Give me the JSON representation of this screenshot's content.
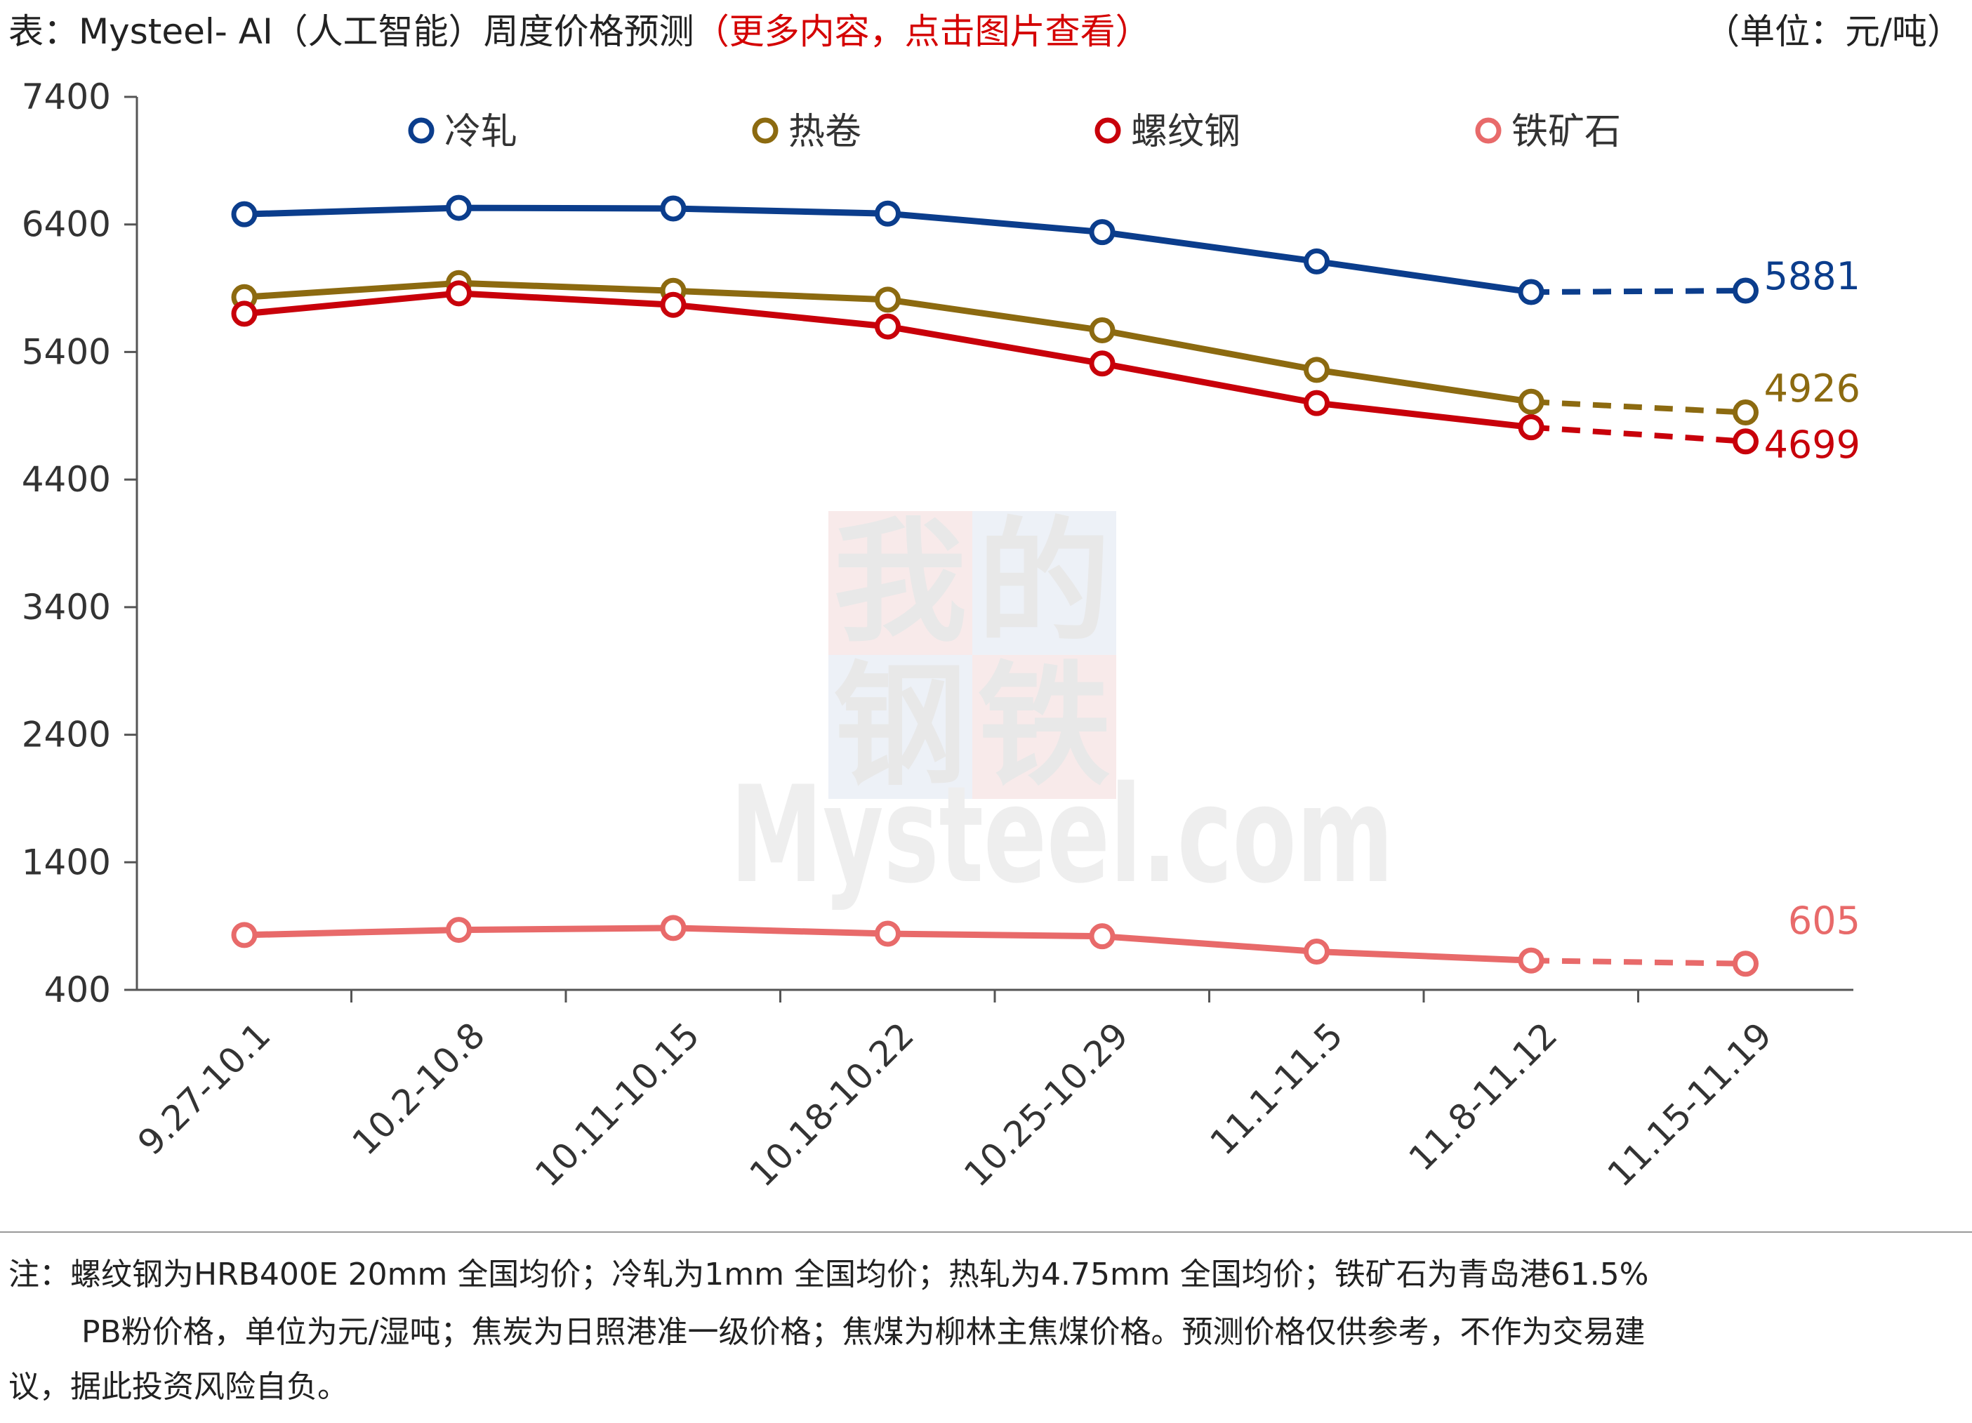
{
  "title": {
    "main": "表：Mysteel- AI（人工智能）周度价格预测",
    "link": "（更多内容，点击图片查看）",
    "link_color": "#d40000",
    "unit": "（单位：元/吨）"
  },
  "watermark": {
    "chars": [
      "我",
      "的",
      "钢",
      "铁"
    ],
    "url": "Mysteel.com",
    "colors": [
      "#f3d9d9",
      "#dfe6f1"
    ]
  },
  "chart_data": {
    "type": "line",
    "title": "Mysteel- AI（人工智能）周度价格预测",
    "xlabel": "",
    "ylabel": "",
    "ylim": [
      400,
      7400
    ],
    "yticks": [
      400,
      1400,
      2400,
      3400,
      4400,
      5400,
      6400,
      7400
    ],
    "grid": false,
    "legend_position": "top",
    "categories": [
      "9.27-10.1",
      "10.2-10.8",
      "10.11-10.15",
      "10.18-10.22",
      "10.25-10.29",
      "11.1-11.5",
      "11.8-11.12",
      "11.15-11.19"
    ],
    "forecast_from_index": 6,
    "series": [
      {
        "name": "冷轧",
        "color": "#0b3d8c",
        "values": [
          6480,
          6530,
          6525,
          6485,
          6340,
          6110,
          5870,
          5881
        ],
        "end_label": "5881"
      },
      {
        "name": "热卷",
        "color": "#8c6a10",
        "values": [
          5830,
          5940,
          5880,
          5810,
          5570,
          5260,
          5010,
          4926
        ],
        "end_label": "4926"
      },
      {
        "name": "螺纹钢",
        "color": "#c8000a",
        "values": [
          5700,
          5860,
          5770,
          5600,
          5310,
          5000,
          4810,
          4699
        ],
        "end_label": "4699"
      },
      {
        "name": "铁矿石",
        "color": "#e86a6a",
        "values": [
          830,
          870,
          885,
          840,
          820,
          700,
          630,
          605
        ],
        "end_label": "605"
      }
    ]
  },
  "notes": {
    "line1": "注：螺纹钢为HRB400E 20mm 全国均价；冷轧为1mm 全国均价；热轧为4.75mm 全国均价；铁矿石为青岛港61.5%",
    "line2": "PB粉价格，单位为元/湿吨；焦炭为日照港准一级价格；焦煤为柳林主焦煤价格。预测价格仅供参考，不作为交易建",
    "line3": "议，据此投资风险自负。"
  }
}
